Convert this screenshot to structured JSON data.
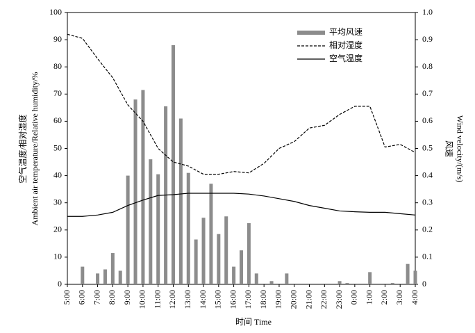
{
  "chart_data": {
    "type": "combo",
    "xlabel": "时间 Time",
    "ylabel": [
      "空气温度/相对湿度",
      "Ambient air temperature/Relative humidity/%"
    ],
    "y2label": [
      "风速",
      "Wind velocity/(m/s)"
    ],
    "xlim": [
      0,
      23
    ],
    "xticks": [
      {
        "value": 0,
        "label": "5:00"
      },
      {
        "value": 1,
        "label": "6:00"
      },
      {
        "value": 2,
        "label": "7:00"
      },
      {
        "value": 3,
        "label": "8:00"
      },
      {
        "value": 4,
        "label": "9:00"
      },
      {
        "value": 5,
        "label": "10:00"
      },
      {
        "value": 6,
        "label": "11:00"
      },
      {
        "value": 7,
        "label": "12:00"
      },
      {
        "value": 8,
        "label": "13:00"
      },
      {
        "value": 9,
        "label": "14:00"
      },
      {
        "value": 10,
        "label": "15:00"
      },
      {
        "value": 11,
        "label": "16:00"
      },
      {
        "value": 12,
        "label": "17:00"
      },
      {
        "value": 13,
        "label": "18:00"
      },
      {
        "value": 14,
        "label": "19:00"
      },
      {
        "value": 15,
        "label": "20:00"
      },
      {
        "value": 16,
        "label": "21:00"
      },
      {
        "value": 17,
        "label": "22:00"
      },
      {
        "value": 18,
        "label": "23:00"
      },
      {
        "value": 19,
        "label": "0:00"
      },
      {
        "value": 20,
        "label": "1:00"
      },
      {
        "value": 21,
        "label": "2:00"
      },
      {
        "value": 22,
        "label": "3:00"
      },
      {
        "value": 23,
        "label": "4:00"
      }
    ],
    "ylim": [
      0,
      100
    ],
    "yticks": [
      0,
      10,
      20,
      30,
      40,
      50,
      60,
      70,
      80,
      90,
      100
    ],
    "y2lim": [
      0,
      1
    ],
    "y2ticks": [
      0,
      0.1,
      0.2,
      0.3,
      0.4,
      0.5,
      0.6,
      0.7,
      0.8,
      0.9,
      {
        "value": 1,
        "label": "1.0"
      }
    ],
    "x": [
      0,
      1,
      2,
      3,
      4,
      5,
      6,
      7,
      8,
      9,
      10,
      11,
      12,
      13,
      14,
      15,
      16,
      17,
      18,
      19,
      20,
      21,
      22,
      23
    ],
    "series": [
      {
        "name": "平均风速",
        "type": "bar",
        "axis": "y2",
        "color": "#8c8c8c",
        "x": [
          1,
          2,
          2.5,
          3,
          3.5,
          4,
          4.5,
          5,
          5.5,
          6,
          6.5,
          7,
          7.5,
          8,
          8.5,
          9,
          9.5,
          10,
          10.5,
          11,
          11.5,
          12,
          12.5,
          13.5,
          14.5,
          18,
          18.5,
          20,
          21.5,
          22.5,
          23
        ],
        "values": [
          0.065,
          0.04,
          0.055,
          0.115,
          0.05,
          0.4,
          0.68,
          0.715,
          0.46,
          0.405,
          0.655,
          0.88,
          0.61,
          0.41,
          0.165,
          0.245,
          0.37,
          0.185,
          0.25,
          0.065,
          0.125,
          0.225,
          0.04,
          0.012,
          0.04,
          0.012,
          0.005,
          0.045,
          0.005,
          0.075,
          0.05
        ]
      },
      {
        "name": "相对湿度",
        "type": "line",
        "line_style": "dashed",
        "color": "#000000",
        "values": [
          92,
          90.5,
          83,
          76,
          66,
          60,
          50,
          45,
          43.5,
          40.5,
          40.5,
          41.5,
          41,
          44.5,
          50,
          52.5,
          57.5,
          58.5,
          62.5,
          65.5,
          65.5,
          50.5,
          51.5,
          48.5
        ]
      },
      {
        "name": "空气温度",
        "type": "line",
        "line_style": "solid",
        "color": "#000000",
        "values": [
          25,
          25,
          25.5,
          26.5,
          29,
          31,
          32.7,
          33,
          33.5,
          33.5,
          33.5,
          33.5,
          33.2,
          32.5,
          31.5,
          30.5,
          29,
          28,
          27,
          26.7,
          26.5,
          26.5,
          26,
          25.5
        ]
      }
    ],
    "legend": "upper-right"
  }
}
